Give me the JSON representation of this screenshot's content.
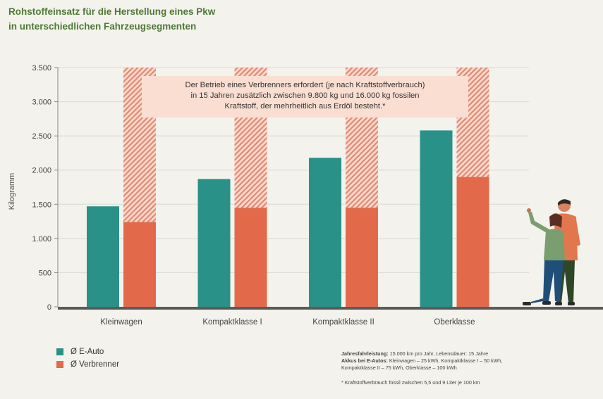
{
  "title_line1": "Rohstoffeinsatz für die Herstellung eines Pkw",
  "title_line2": "in unterschiedlichen Fahrzeugsegmenten",
  "annotation": {
    "line1": "Der Betrieb eines Verbrenners erfordert (je nach Kraftstoffverbrauch)",
    "line2": "in 15 Jahren zusätzlich zwischen 9.800 kg und 16.000 kg fossilen",
    "line3": "Kraftstoff, der mehrheitlich aus Erdöl besteht.*"
  },
  "legend": [
    {
      "label": "Ø E-Auto",
      "color": "#2a9189"
    },
    {
      "label": "Ø Verbrenner",
      "color": "#e2694a"
    }
  ],
  "notes": {
    "jahres_label": "Jahresfahrleistung:",
    "jahres_text": " 15.000 km pro Jahr, Lebensdauer: 15 Jahre",
    "akkus_label": "Akkus bei E-Autos:",
    "akkus_text1": " Kleinwagen – 25 kWh, Kompaktklasse I – 50 kWh,",
    "akkus_text2": "Kompaktklasse II – 75 kWh, Oberklasse – 100 kWh",
    "footnote": "* Kraftstoffverbrauch fossil zwischen 5,5 und 9 Liter je 100 km"
  },
  "chart_data": {
    "type": "bar",
    "ylabel": "Kilogramm",
    "ylim": [
      0,
      3500
    ],
    "yticks": [
      0,
      500,
      1000,
      1500,
      2000,
      2500,
      3000,
      3500
    ],
    "ytick_labels": [
      "0",
      "500",
      "1.000",
      "1.500",
      "2.000",
      "2.500",
      "3.000",
      "3.500"
    ],
    "categories": [
      "Kleinwagen",
      "Kompaktklasse I",
      "Kompaktklasse II",
      "Oberklasse"
    ],
    "series": [
      {
        "name": "Ø E-Auto",
        "color": "#2a9189",
        "values": [
          1470,
          1870,
          2180,
          2580
        ]
      },
      {
        "name": "Ø Verbrenner",
        "color": "#e2694a",
        "values": [
          1240,
          1450,
          1450,
          1900
        ]
      }
    ],
    "hatched_extension_to": 3500,
    "grid": true,
    "legend_position": "bottom-left"
  }
}
